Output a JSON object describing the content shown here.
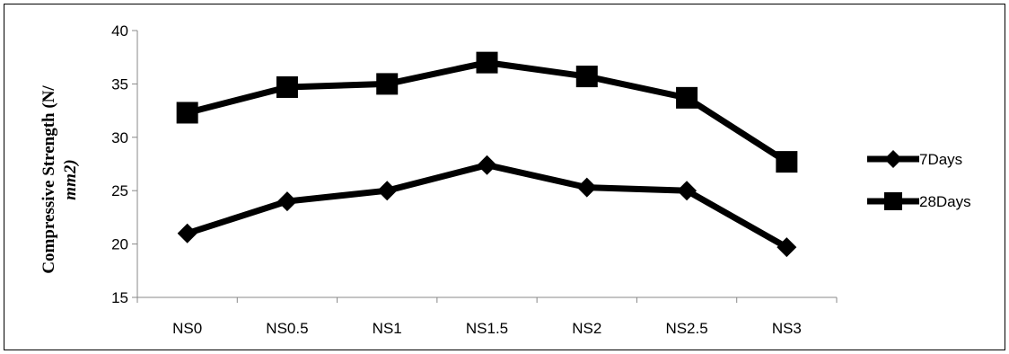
{
  "chart_data": {
    "type": "line",
    "title": "",
    "xlabel": "",
    "ylabel": "Compressive Strength (N/",
    "ylabel_unit": "mm2)",
    "categories": [
      "NS0",
      "NS0.5",
      "NS1",
      "NS1.5",
      "NS2",
      "NS2.5",
      "NS3"
    ],
    "yticks": [
      "15",
      "20",
      "25",
      "30",
      "35",
      "40"
    ],
    "ylim": [
      15,
      40
    ],
    "grid": false,
    "legend_position": "right",
    "series": [
      {
        "name": "7Days",
        "marker": "diamond",
        "color": "#000000",
        "values": [
          21.0,
          24.0,
          25.0,
          27.4,
          25.3,
          25.0,
          19.7
        ]
      },
      {
        "name": "28Days",
        "marker": "square",
        "color": "#000000",
        "values": [
          32.3,
          34.7,
          35.0,
          37.0,
          35.7,
          33.7,
          27.7
        ]
      }
    ]
  }
}
